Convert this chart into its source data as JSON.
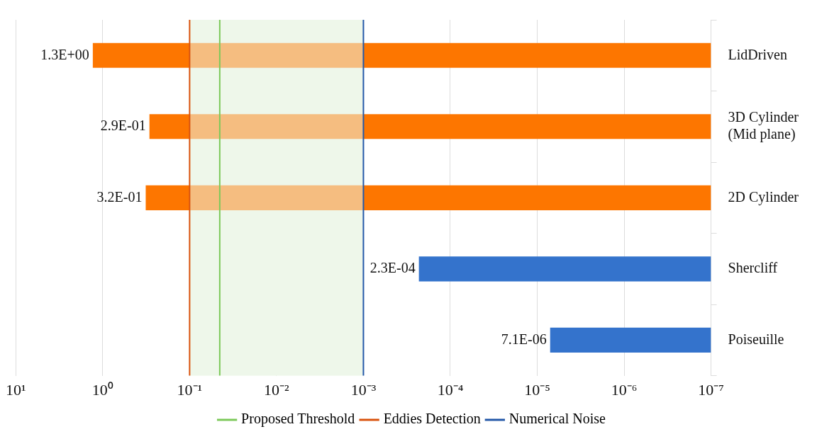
{
  "chart_data": {
    "type": "bar",
    "orientation": "horizontal",
    "log": "x",
    "categories": [
      "LidDriven",
      "3D Cylinder (Mid plane)",
      "2D Cylinder",
      "Shercliff",
      "Poiseuille"
    ],
    "values": [
      1.3,
      0.29,
      0.32,
      0.00023,
      7.1e-06
    ],
    "colors": [
      "#fd7600",
      "#fd7600",
      "#fd7600",
      "#3473cc",
      "#3473cc"
    ],
    "value_labels": [
      "1.3E+00",
      "2.9E-01",
      "3.2E-01",
      "2.3E-04",
      "7.1E-06"
    ],
    "xlim": [
      10,
      1e-07
    ],
    "xticks": [
      {
        "value": 10,
        "label": "10¹"
      },
      {
        "value": 1,
        "label": "10⁰"
      },
      {
        "value": 0.1,
        "label": "10⁻¹"
      },
      {
        "value": 0.01,
        "label": "10⁻²"
      },
      {
        "value": 0.001,
        "label": "10⁻³"
      },
      {
        "value": 0.0001,
        "label": "10⁻⁴"
      },
      {
        "value": 1e-05,
        "label": "10⁻⁵"
      },
      {
        "value": 1e-06,
        "label": "10⁻⁶"
      },
      {
        "value": 1e-07,
        "label": "10⁻⁷"
      }
    ],
    "ref_lines": [
      {
        "axis": "x",
        "value": 0.045,
        "label": "Proposed Threshold",
        "color": "#7cc95a"
      },
      {
        "axis": "x",
        "value": 0.1,
        "label": "Eddies Detection",
        "color": "#d9530e"
      },
      {
        "axis": "x",
        "value": 0.001,
        "label": "Numerical Noise",
        "color": "#2458a8"
      }
    ],
    "bands": [
      {
        "axis": "x",
        "from": 0.1,
        "to": 0.001,
        "color": "#eef7ea"
      }
    ],
    "grid": "x",
    "legend": "bottom"
  }
}
